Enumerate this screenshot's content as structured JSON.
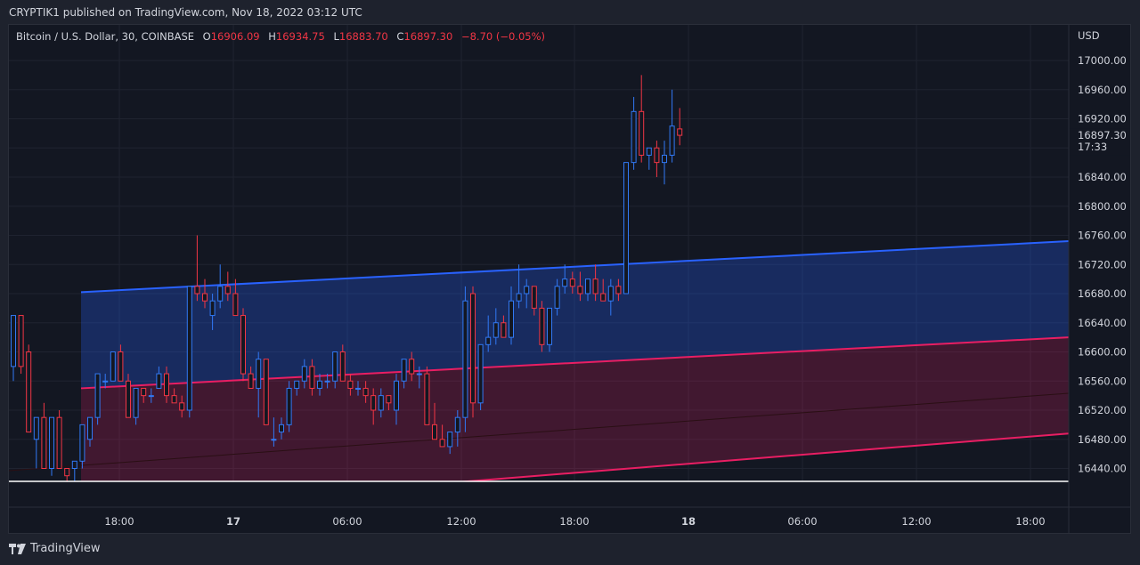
{
  "header": {
    "publish_line": "CRYPTIK1 published on TradingView.com, Nov 18, 2022 03:12 UTC"
  },
  "legend": {
    "symbol": "Bitcoin / U.S. Dollar, 30, COINBASE",
    "open_label": "O",
    "open": "16906.09",
    "high_label": "H",
    "high": "16934.75",
    "low_label": "L",
    "low": "16883.70",
    "close_label": "C",
    "close": "16897.30",
    "change": "−8.70 (−0.05%)"
  },
  "footer": {
    "brand": "TradingView"
  },
  "colors": {
    "up": "#3179f5",
    "down": "#f23645",
    "channel_upper": "#2962ff",
    "channel_lower": "#e91e63",
    "background": "#131722"
  },
  "chart_data": {
    "type": "candlestick",
    "currency": "USD",
    "y_ticks": [
      16440,
      16480,
      16520,
      16560,
      16600,
      16640,
      16680,
      16720,
      16760,
      16800,
      16840,
      16880,
      16920,
      16960,
      17000
    ],
    "x_ticks": [
      "18:00",
      "17",
      "06:00",
      "12:00",
      "18:00",
      "18",
      "06:00",
      "12:00",
      "18:00"
    ],
    "last_price": {
      "value": "16897.30",
      "countdown": "17:33"
    },
    "candles_ohlc": [
      [
        16580,
        16650,
        16560,
        16650
      ],
      [
        16650,
        16650,
        16570,
        16580
      ],
      [
        16600,
        16610,
        16490,
        16490
      ],
      [
        16480,
        16510,
        16440,
        16510
      ],
      [
        16510,
        16530,
        16440,
        16440
      ],
      [
        16440,
        16510,
        16430,
        16510
      ],
      [
        16510,
        16520,
        16440,
        16440
      ],
      [
        16440,
        16440,
        16420,
        16430
      ],
      [
        16440,
        16450,
        16420,
        16450
      ],
      [
        16450,
        16500,
        16440,
        16500
      ],
      [
        16480,
        16510,
        16470,
        16510
      ],
      [
        16510,
        16570,
        16500,
        16570
      ],
      [
        16560,
        16570,
        16550,
        16560
      ],
      [
        16560,
        16600,
        16560,
        16600
      ],
      [
        16600,
        16610,
        16560,
        16560
      ],
      [
        16560,
        16570,
        16510,
        16510
      ],
      [
        16510,
        16550,
        16500,
        16550
      ],
      [
        16550,
        16550,
        16530,
        16540
      ],
      [
        16540,
        16550,
        16530,
        16540
      ],
      [
        16550,
        16580,
        16550,
        16570
      ],
      [
        16570,
        16580,
        16530,
        16540
      ],
      [
        16540,
        16550,
        16530,
        16530
      ],
      [
        16530,
        16540,
        16510,
        16520
      ],
      [
        16520,
        16690,
        16510,
        16690
      ],
      [
        16690,
        16760,
        16670,
        16680
      ],
      [
        16680,
        16700,
        16660,
        16670
      ],
      [
        16650,
        16680,
        16630,
        16670
      ],
      [
        16670,
        16720,
        16660,
        16690
      ],
      [
        16690,
        16710,
        16670,
        16680
      ],
      [
        16680,
        16700,
        16650,
        16650
      ],
      [
        16650,
        16660,
        16560,
        16570
      ],
      [
        16570,
        16580,
        16550,
        16550
      ],
      [
        16550,
        16600,
        16510,
        16590
      ],
      [
        16590,
        16590,
        16500,
        16500
      ],
      [
        16480,
        16510,
        16470,
        16480
      ],
      [
        16490,
        16510,
        16480,
        16500
      ],
      [
        16500,
        16560,
        16490,
        16550
      ],
      [
        16550,
        16560,
        16540,
        16560
      ],
      [
        16560,
        16590,
        16550,
        16580
      ],
      [
        16580,
        16590,
        16540,
        16550
      ],
      [
        16550,
        16570,
        16540,
        16560
      ],
      [
        16560,
        16570,
        16550,
        16560
      ],
      [
        16560,
        16600,
        16550,
        16600
      ],
      [
        16600,
        16610,
        16560,
        16560
      ],
      [
        16560,
        16570,
        16540,
        16550
      ],
      [
        16550,
        16560,
        16540,
        16550
      ],
      [
        16550,
        16560,
        16530,
        16540
      ],
      [
        16540,
        16550,
        16500,
        16520
      ],
      [
        16520,
        16550,
        16510,
        16540
      ],
      [
        16540,
        16540,
        16520,
        16530
      ],
      [
        16520,
        16570,
        16500,
        16560
      ],
      [
        16560,
        16580,
        16550,
        16590
      ],
      [
        16590,
        16600,
        16560,
        16570
      ],
      [
        16570,
        16580,
        16550,
        16570
      ],
      [
        16570,
        16580,
        16510,
        16500
      ],
      [
        16500,
        16530,
        16490,
        16480
      ],
      [
        16480,
        16500,
        16470,
        16470
      ],
      [
        16470,
        16490,
        16460,
        16490
      ],
      [
        16490,
        16520,
        16470,
        16510
      ],
      [
        16510,
        16690,
        16490,
        16670
      ],
      [
        16680,
        16690,
        16510,
        16530
      ],
      [
        16530,
        16610,
        16520,
        16610
      ],
      [
        16610,
        16650,
        16600,
        16620
      ],
      [
        16620,
        16660,
        16610,
        16640
      ],
      [
        16640,
        16650,
        16620,
        16620
      ],
      [
        16620,
        16690,
        16610,
        16670
      ],
      [
        16670,
        16720,
        16660,
        16680
      ],
      [
        16680,
        16700,
        16660,
        16690
      ],
      [
        16690,
        16690,
        16650,
        16660
      ],
      [
        16660,
        16670,
        16600,
        16610
      ],
      [
        16610,
        16660,
        16600,
        16660
      ],
      [
        16660,
        16700,
        16650,
        16690
      ],
      [
        16690,
        16720,
        16680,
        16700
      ],
      [
        16700,
        16710,
        16680,
        16690
      ],
      [
        16690,
        16710,
        16670,
        16680
      ],
      [
        16680,
        16700,
        16670,
        16700
      ],
      [
        16700,
        16720,
        16670,
        16680
      ],
      [
        16680,
        16700,
        16670,
        16670
      ],
      [
        16670,
        16700,
        16650,
        16690
      ],
      [
        16690,
        16700,
        16670,
        16680
      ],
      [
        16680,
        16860,
        16680,
        16860
      ],
      [
        16860,
        16950,
        16850,
        16930
      ],
      [
        16930,
        16980,
        16860,
        16870
      ],
      [
        16870,
        16880,
        16850,
        16880
      ],
      [
        16880,
        16890,
        16840,
        16860
      ],
      [
        16860,
        16890,
        16830,
        16870
      ],
      [
        16870,
        16960,
        16860,
        16910
      ],
      [
        16906.09,
        16934.75,
        16883.7,
        16897.3
      ]
    ],
    "channel_lines": [
      {
        "name": "",
        "start": [
          16682
        ],
        "end": [
          16752
        ]
      },
      {
        "name": "",
        "start": [
          16550
        ],
        "end": [
          16620
        ]
      },
      {
        "name": "",
        "start": [
          16380
        ],
        "end": [
          16488
        ]
      }
    ]
  }
}
